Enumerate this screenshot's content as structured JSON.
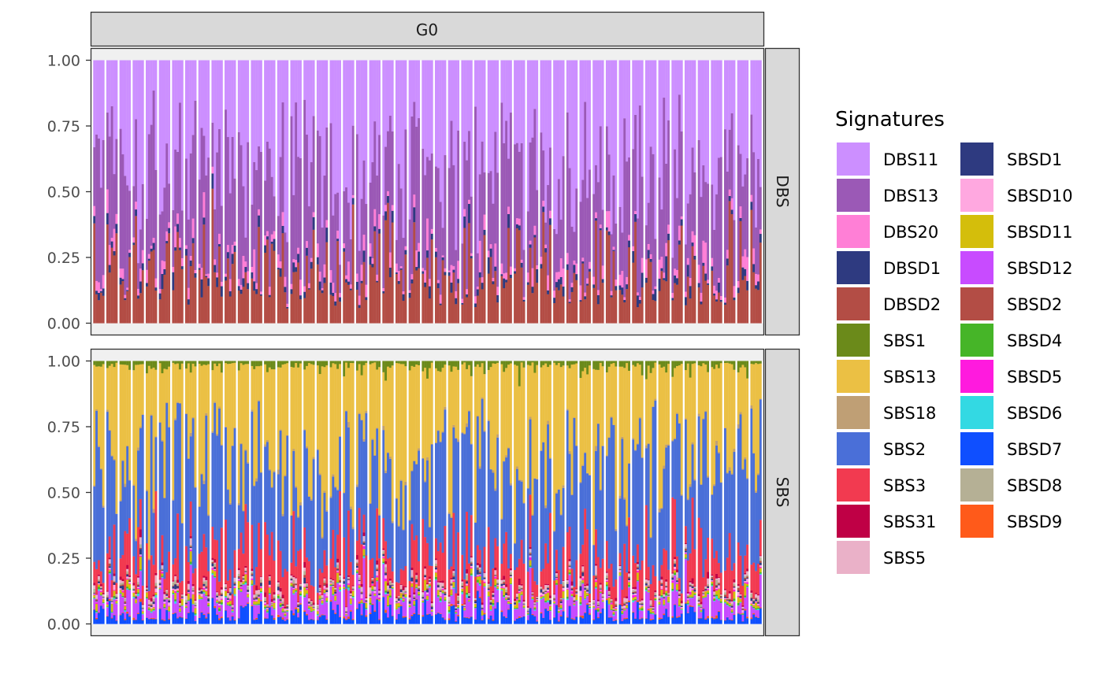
{
  "chart_data": {
    "type": "bar",
    "stacked": true,
    "normalized": true,
    "facet_column": "G0",
    "facet_rows": [
      "DBS",
      "SBS"
    ],
    "ylim": [
      0,
      1
    ],
    "y_ticks": [
      "0.00",
      "0.25",
      "0.50",
      "0.75",
      "1.00"
    ],
    "n_samples_per_panel": 255,
    "legend": {
      "title": "Signatures",
      "position": "right",
      "entries": [
        {
          "name": "DBS11",
          "color": "#CC8FFF"
        },
        {
          "name": "DBS13",
          "color": "#9B59B6"
        },
        {
          "name": "DBS20",
          "color": "#FF7FD6"
        },
        {
          "name": "DBSD1",
          "color": "#2E3A80"
        },
        {
          "name": "DBSD2",
          "color": "#B34D45"
        },
        {
          "name": "SBS1",
          "color": "#6B8A1A"
        },
        {
          "name": "SBS13",
          "color": "#EBC044"
        },
        {
          "name": "SBS18",
          "color": "#BF9F75"
        },
        {
          "name": "SBS2",
          "color": "#4A6FD8"
        },
        {
          "name": "SBS3",
          "color": "#F23A50"
        },
        {
          "name": "SBS31",
          "color": "#BF0045"
        },
        {
          "name": "SBS5",
          "color": "#EAB1C8"
        },
        {
          "name": "SBSD1",
          "color": "#2E3A80"
        },
        {
          "name": "SBSD10",
          "color": "#FFA8E0"
        },
        {
          "name": "SBSD11",
          "color": "#D4BE0B"
        },
        {
          "name": "SBSD12",
          "color": "#C84BFF"
        },
        {
          "name": "SBSD2",
          "color": "#B34D45"
        },
        {
          "name": "SBSD4",
          "color": "#46B528"
        },
        {
          "name": "SBSD5",
          "color": "#FF1ADE"
        },
        {
          "name": "SBSD6",
          "color": "#33D9E3"
        },
        {
          "name": "SBSD7",
          "color": "#0F4FFF"
        },
        {
          "name": "SBSD8",
          "color": "#B5B095"
        },
        {
          "name": "SBSD9",
          "color": "#FF5A1A"
        }
      ]
    },
    "panels": {
      "DBS": {
        "series_order": [
          "DBSD2",
          "DBSD1",
          "DBS20",
          "DBS13",
          "DBS11"
        ],
        "mean_share": {
          "DBSD2": 0.2,
          "DBSD1": 0.02,
          "DBS20": 0.03,
          "DBS13": 0.33,
          "DBS11": 0.42
        }
      },
      "SBS": {
        "series_order": [
          "SBSD7",
          "SBSD9",
          "SBSD12",
          "SBSD6",
          "SBSD4",
          "SBSD11",
          "SBSD5",
          "SBSD10",
          "SBSD1",
          "SBSD2",
          "SBSD8",
          "SBS5",
          "SBS31",
          "SBS3",
          "SBS2",
          "SBS18",
          "SBS13",
          "SBS1"
        ],
        "mean_share": {
          "SBSD7": 0.035,
          "SBSD9": 0.003,
          "SBSD12": 0.05,
          "SBSD6": 0.003,
          "SBSD4": 0.003,
          "SBSD11": 0.012,
          "SBSD5": 0.003,
          "SBSD10": 0.005,
          "SBSD1": 0.005,
          "SBSD2": 0.003,
          "SBSD8": 0.005,
          "SBS5": 0.008,
          "SBS31": 0.006,
          "SBS3": 0.11,
          "SBS2": 0.36,
          "SBS18": 0.005,
          "SBS13": 0.36,
          "SBS1": 0.019
        }
      }
    }
  }
}
